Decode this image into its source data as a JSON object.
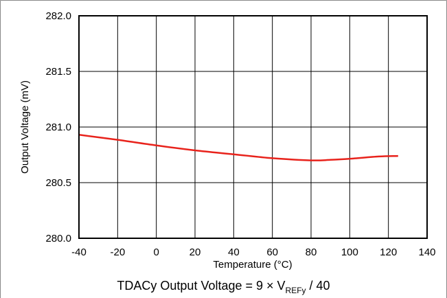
{
  "chart_data": {
    "type": "line",
    "title": "",
    "xlabel": "Temperature (°C)",
    "ylabel": "Output Voltage (mV)",
    "xlim": [
      -40,
      140
    ],
    "ylim": [
      280.0,
      282.0
    ],
    "x_ticks": [
      "-40",
      "-20",
      "0",
      "20",
      "40",
      "60",
      "80",
      "100",
      "120",
      "140"
    ],
    "y_ticks": [
      "280.0",
      "280.5",
      "281.0",
      "281.5",
      "282.0"
    ],
    "grid": true,
    "series": [
      {
        "color": "#e8221b",
        "x": [
          -40,
          -20,
          0,
          20,
          40,
          60,
          80,
          90,
          100,
          115,
          125
        ],
        "y": [
          280.93,
          280.885,
          280.835,
          280.79,
          280.755,
          280.72,
          280.7,
          280.705,
          280.715,
          280.735,
          280.74
        ]
      }
    ]
  },
  "caption": {
    "prefix": "TDACy Output Voltage = 9 × V",
    "subscript": "REFy",
    "suffix": " / 40"
  }
}
